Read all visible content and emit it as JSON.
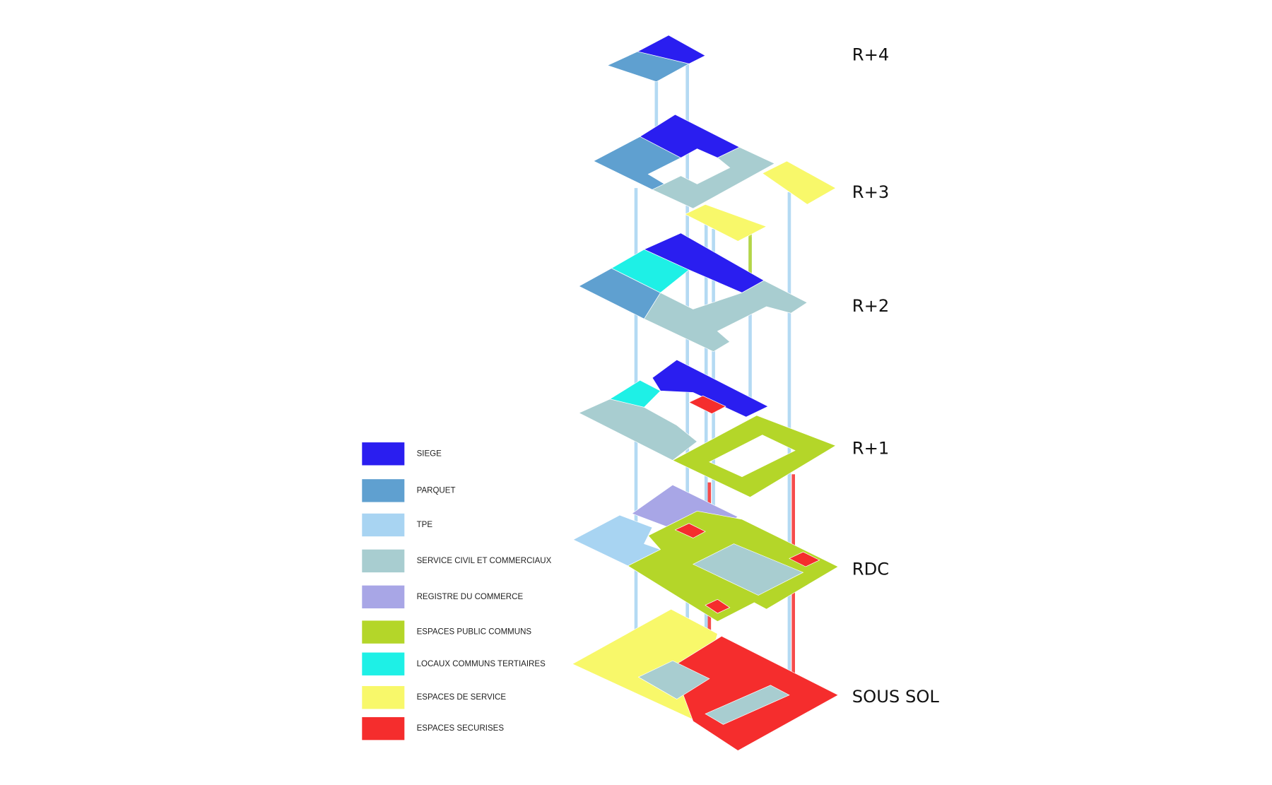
{
  "floors": [
    {
      "label": "R+4"
    },
    {
      "label": "R+3"
    },
    {
      "label": "R+2"
    },
    {
      "label": "R+1"
    },
    {
      "label": "RDC"
    },
    {
      "label": "SOUS SOL"
    }
  ],
  "legend": [
    {
      "label": "SIEGE",
      "color": "#2a1ef0"
    },
    {
      "label": "PARQUET",
      "color": "#5fa0d0"
    },
    {
      "label": "TPE",
      "color": "#a8d4f2"
    },
    {
      "label": "SERVICE CIVIL ET COMMERCIAUX",
      "color": "#a8cdd0"
    },
    {
      "label": "REGISTRE DU COMMERCE",
      "color": "#a8a6e6"
    },
    {
      "label": "ESPACES PUBLIC COMMUNS",
      "color": "#b4d629"
    },
    {
      "label": "LOCAUX COMMUNS TERTIAIRES",
      "color": "#1ef0e6"
    },
    {
      "label": "ESPACES DE SERVICE",
      "color": "#f8f86a"
    },
    {
      "label": "ESPACES SECURISES",
      "color": "#f52d2d"
    }
  ]
}
